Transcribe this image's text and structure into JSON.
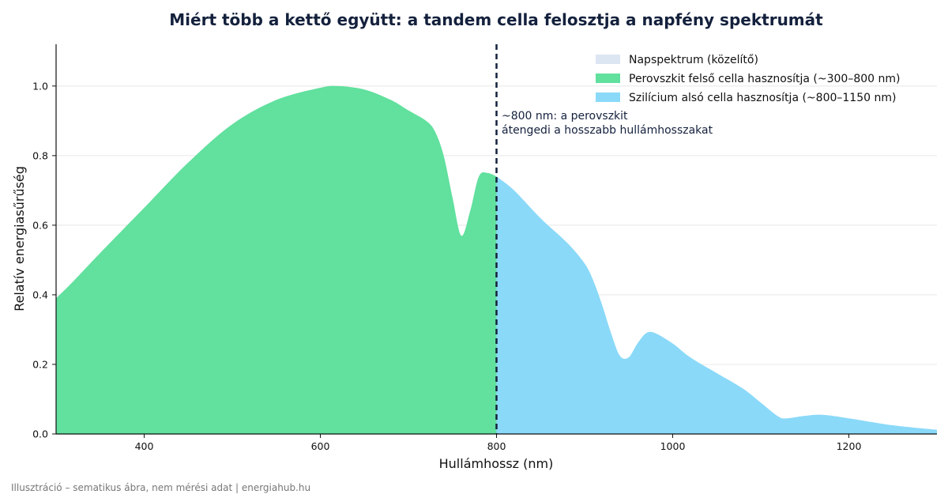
{
  "chart_data": {
    "type": "area",
    "title": "Miért több a kettő együtt: a tandem cella felosztja a napfény spektrumát",
    "xlabel": "Hullámhossz (nm)",
    "ylabel": "Relatív energiasűrűség",
    "xlim": [
      300,
      1300
    ],
    "ylim": [
      0,
      1.12
    ],
    "xticks": [
      400,
      600,
      800,
      1000,
      1200
    ],
    "yticks": [
      0.0,
      0.2,
      0.4,
      0.6,
      0.8,
      1.0
    ],
    "ytick_labels": [
      "0.0",
      "0.2",
      "0.4",
      "0.6",
      "0.8",
      "1.0"
    ],
    "grid": "horizontal",
    "legend_position": "top-right",
    "spectrum": {
      "x": [
        300,
        320,
        350,
        400,
        450,
        500,
        550,
        600,
        620,
        650,
        680,
        700,
        720,
        730,
        740,
        750,
        760,
        770,
        780,
        790,
        800,
        820,
        850,
        880,
        900,
        910,
        920,
        930,
        940,
        950,
        960,
        970,
        980,
        1000,
        1020,
        1050,
        1080,
        1100,
        1120,
        1130,
        1150,
        1170,
        1200,
        1250,
        1300
      ],
      "y": [
        0.39,
        0.44,
        0.52,
        0.65,
        0.78,
        0.89,
        0.96,
        0.995,
        1.0,
        0.99,
        0.96,
        0.93,
        0.9,
        0.87,
        0.8,
        0.68,
        0.57,
        0.64,
        0.74,
        0.75,
        0.74,
        0.7,
        0.62,
        0.55,
        0.49,
        0.44,
        0.37,
        0.29,
        0.225,
        0.22,
        0.26,
        0.29,
        0.29,
        0.26,
        0.22,
        0.175,
        0.13,
        0.09,
        0.05,
        0.045,
        0.052,
        0.055,
        0.045,
        0.025,
        0.012
      ]
    },
    "split_nm": 800,
    "series": [
      {
        "name": "Napspektrum (közelítő)",
        "color": "#dce6f2"
      },
      {
        "name": "Perovszkit felső cella hasznosítja (~300–800 nm)",
        "color": "#61e09e"
      },
      {
        "name": "Szilícium alsó cella hasznosítja (~800–1150 nm)",
        "color": "#8ad9f9"
      }
    ],
    "annotation": [
      "~800 nm: a perovszkit",
      "átengedi a hosszabb hullámhosszakat"
    ],
    "footer": "Illusztráció – sematikus ábra, nem mérési adat | energiahub.hu",
    "colors": {
      "divider": "#14213d",
      "grid": "#e8e8e8",
      "axis": "#111111"
    }
  }
}
